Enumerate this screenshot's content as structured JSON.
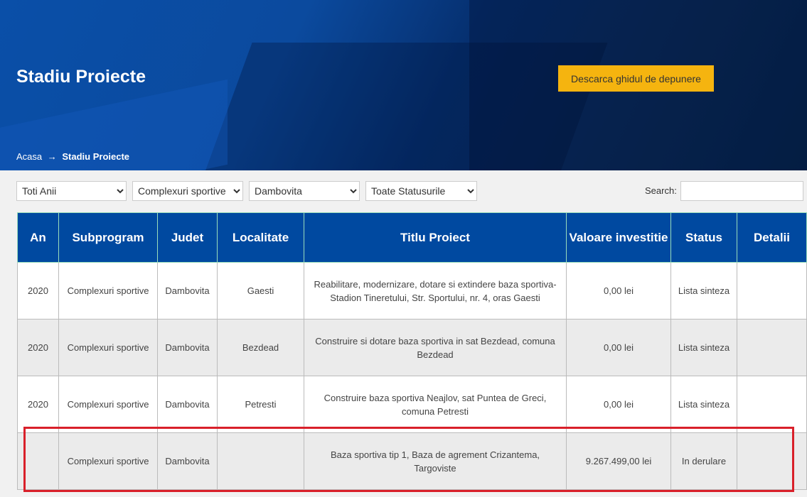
{
  "header": {
    "title": "Stadiu Proiecte",
    "download_button": "Descarca ghidul de depunere"
  },
  "breadcrumb": {
    "home": "Acasa",
    "separator": "→",
    "current": "Stadiu Proiecte"
  },
  "filters": {
    "year": "Toti Anii",
    "subprogram": "Complexuri sportive",
    "county": "Dambovita",
    "status": "Toate Statusurile",
    "search_label": "Search:",
    "search_value": ""
  },
  "table": {
    "columns": [
      "An",
      "Subprogram",
      "Judet",
      "Localitate",
      "Titlu Proiect",
      "Valoare investitie",
      "Status",
      "Detalii"
    ],
    "rows": [
      {
        "an": "2020",
        "subprogram": "Complexuri sportive",
        "judet": "Dambovita",
        "localitate": "Gaesti",
        "titlu": "Reabilitare, modernizare, dotare si extindere baza sportiva-Stadion Tineretului, Str. Sportului, nr. 4, oras Gaesti",
        "valoare": "0,00 lei",
        "status": "Lista sinteza",
        "detalii": ""
      },
      {
        "an": "2020",
        "subprogram": "Complexuri sportive",
        "judet": "Dambovita",
        "localitate": "Bezdead",
        "titlu": "Construire si dotare baza sportiva in sat Bezdead, comuna Bezdead",
        "valoare": "0,00 lei",
        "status": "Lista sinteza",
        "detalii": ""
      },
      {
        "an": "2020",
        "subprogram": "Complexuri sportive",
        "judet": "Dambovita",
        "localitate": "Petresti",
        "titlu": "Construire baza sportiva Neajlov, sat Puntea de Greci, comuna Petresti",
        "valoare": "0,00 lei",
        "status": "Lista sinteza",
        "detalii": ""
      },
      {
        "an": "",
        "subprogram": "Complexuri sportive",
        "judet": "Dambovita",
        "localitate": "",
        "titlu": "Baza sportiva tip 1, Baza de agrement Crizantema, Targoviste",
        "valoare": "9.267.499,00 lei",
        "status": "In derulare",
        "detalii": ""
      }
    ]
  },
  "colors": {
    "header_blue": "#0049a0",
    "button_yellow": "#f5b40f",
    "highlight_red": "#d9202a"
  }
}
